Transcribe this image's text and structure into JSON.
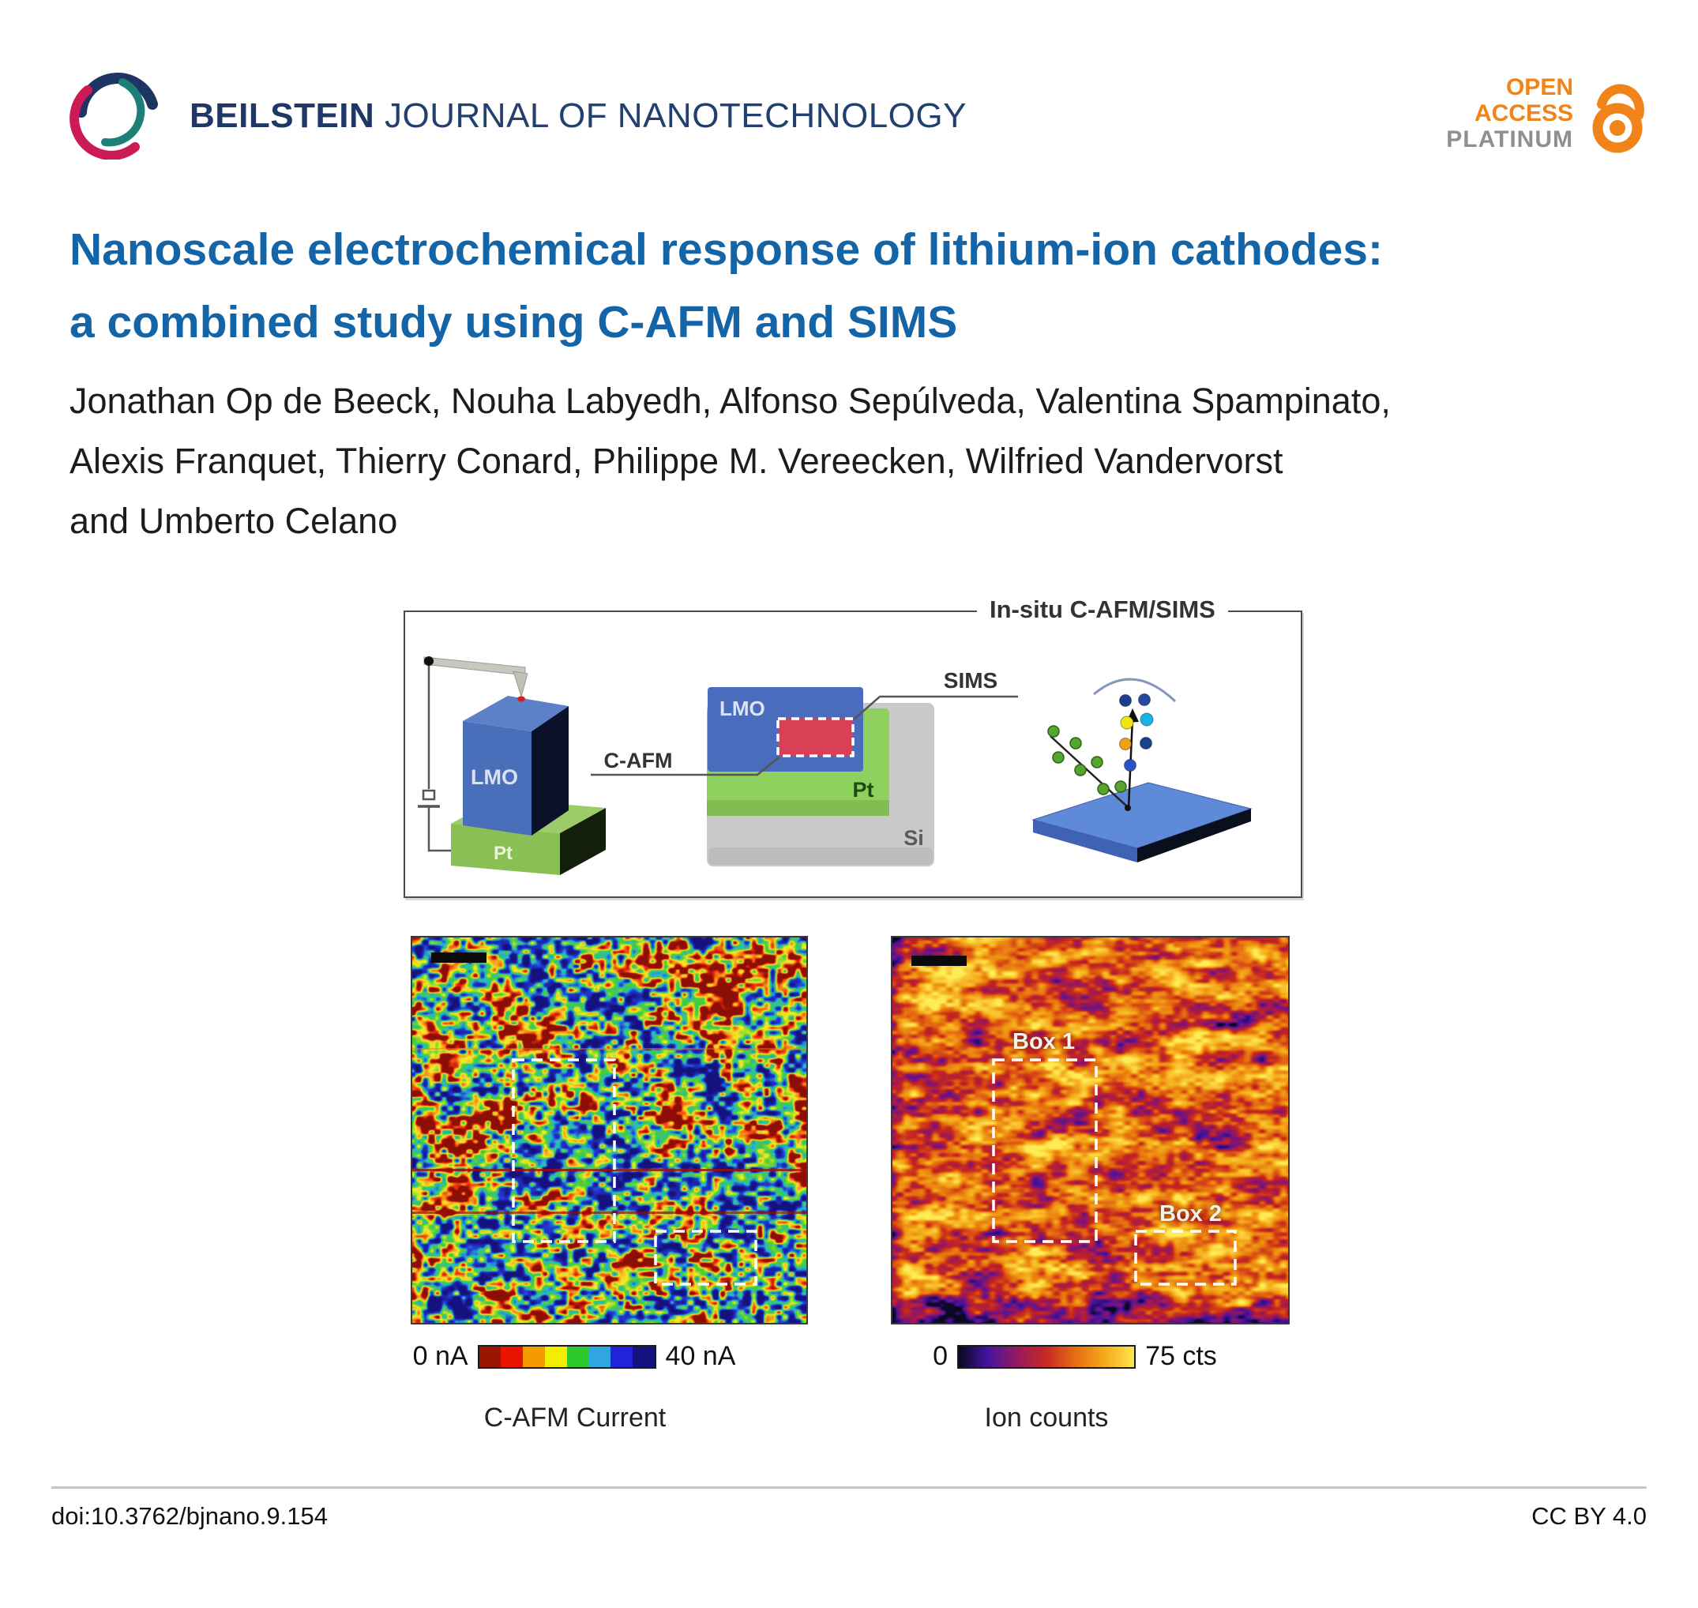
{
  "header": {
    "journal_bold": "BEILSTEIN",
    "journal_rest": " JOURNAL OF NANOTECHNOLOGY",
    "open_access": {
      "line1": "OPEN",
      "line2": "ACCESS",
      "line3": "PLATINUM",
      "orange": "#f08418",
      "gray": "#8f8f8f"
    }
  },
  "article": {
    "title_line1": "Nanoscale electrochemical response of lithium-ion cathodes:",
    "title_line2": "a combined study using C-AFM and SIMS",
    "title_color": "#1464a8",
    "authors_line1": "Jonathan Op de Beeck, Nouha Labyedh, Alfonso Sepúlveda, Valentina Spampinato,",
    "authors_line2": "Alexis Franquet, Thierry Conard, Philippe M. Vereecken, Wilfried Vandervorst",
    "authors_line3": "and Umberto Celano"
  },
  "figure": {
    "schematic": {
      "label": "In-situ C-AFM/SIMS",
      "sample_layer_label": "LMO",
      "sample_base_label": "Pt",
      "cafm_label": "C-AFM",
      "sims_label": "SIMS",
      "film_label": "LMO",
      "electrode_label": "Pt",
      "substrate_label": "Si"
    },
    "cafm_map": {
      "caption": "C-AFM Current",
      "scale_min": "0 nA",
      "scale_max": "40 nA",
      "colorbar": [
        "#9b1500",
        "#e71500",
        "#f59b00",
        "#f3ee00",
        "#2cc82c",
        "#2fa6e0",
        "#2222dd",
        "#14127f"
      ]
    },
    "sims_map": {
      "caption": "Ion counts",
      "scale_min": "0",
      "scale_max": "75 cts",
      "box1_label": "Box 1",
      "box2_label": "Box 2",
      "colorbar": [
        "#0a0820",
        "#4614a0",
        "#96195f",
        "#c82823",
        "#e66e14",
        "#f5aa19",
        "#ffe550"
      ]
    }
  },
  "footer": {
    "doi": "doi:10.3762/bjnano.9.154",
    "license": "CC BY 4.0"
  }
}
